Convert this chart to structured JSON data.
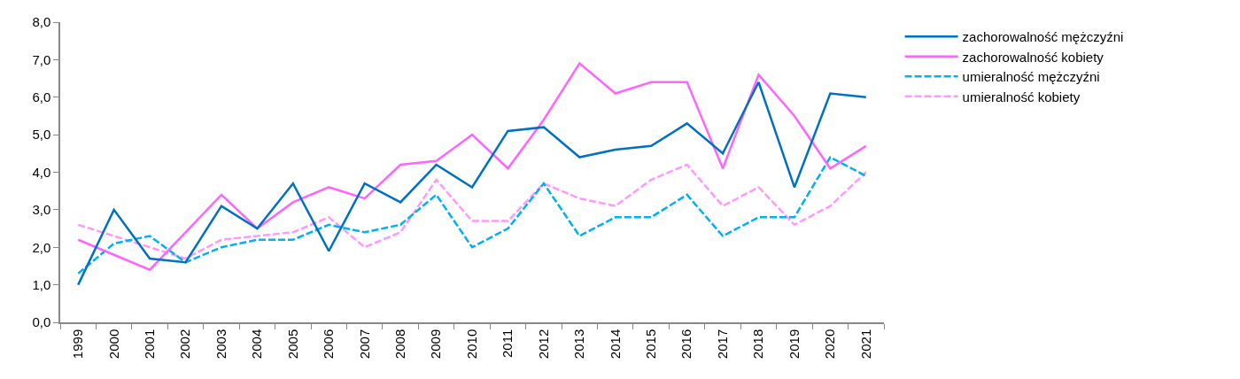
{
  "chart_data": {
    "type": "line",
    "categories": [
      "1999",
      "2000",
      "2001",
      "2002",
      "2003",
      "2004",
      "2005",
      "2006",
      "2007",
      "2008",
      "2009",
      "2010",
      "2011",
      "2012",
      "2013",
      "2014",
      "2015",
      "2016",
      "2017",
      "2018",
      "2019",
      "2020",
      "2021"
    ],
    "series": [
      {
        "name": "zachorowalność mężczyźni",
        "color": "#0070c0",
        "line_style": "solid",
        "values": [
          1.0,
          3.0,
          1.7,
          1.6,
          3.1,
          2.5,
          3.7,
          1.9,
          3.7,
          3.2,
          4.2,
          3.6,
          5.1,
          5.2,
          4.4,
          4.6,
          4.7,
          5.3,
          4.5,
          6.4,
          3.6,
          6.1,
          6.0
        ]
      },
      {
        "name": "zachorowalność kobiety",
        "color": "#ff66ff",
        "line_style": "solid",
        "values": [
          2.2,
          1.8,
          1.4,
          2.4,
          3.4,
          2.5,
          3.2,
          3.6,
          3.3,
          4.2,
          4.3,
          5.0,
          4.1,
          5.4,
          6.9,
          6.1,
          6.4,
          6.4,
          4.1,
          6.6,
          5.5,
          4.1,
          4.7
        ]
      },
      {
        "name": "umieralność mężczyźni",
        "color": "#00b0f0",
        "line_style": "dashed",
        "values": [
          1.3,
          2.1,
          2.3,
          1.6,
          2.0,
          2.2,
          2.2,
          2.6,
          2.4,
          2.6,
          3.4,
          2.0,
          2.5,
          3.7,
          2.3,
          2.8,
          2.8,
          3.4,
          2.3,
          2.8,
          2.8,
          4.4,
          3.9
        ]
      },
      {
        "name": "umieralność kobiety",
        "color": "#ff99ff",
        "line_style": "dashed",
        "values": [
          2.6,
          2.3,
          2.0,
          1.7,
          2.2,
          2.3,
          2.4,
          2.8,
          2.0,
          2.4,
          3.8,
          2.7,
          2.7,
          3.7,
          3.3,
          3.1,
          3.8,
          4.2,
          3.1,
          3.6,
          2.6,
          3.1,
          4.0
        ]
      }
    ],
    "ylim": [
      0,
      8
    ],
    "yticks": [
      {
        "value": 0,
        "label": "0,0"
      },
      {
        "value": 1,
        "label": "1,0"
      },
      {
        "value": 2,
        "label": "2,0"
      },
      {
        "value": 3,
        "label": "3,0"
      },
      {
        "value": 4,
        "label": "4,0"
      },
      {
        "value": 5,
        "label": "5,0"
      },
      {
        "value": 6,
        "label": "6,0"
      },
      {
        "value": 7,
        "label": "7,0"
      },
      {
        "value": 8,
        "label": "8,0"
      }
    ],
    "grid": false,
    "legend": "right",
    "marker": "none"
  }
}
